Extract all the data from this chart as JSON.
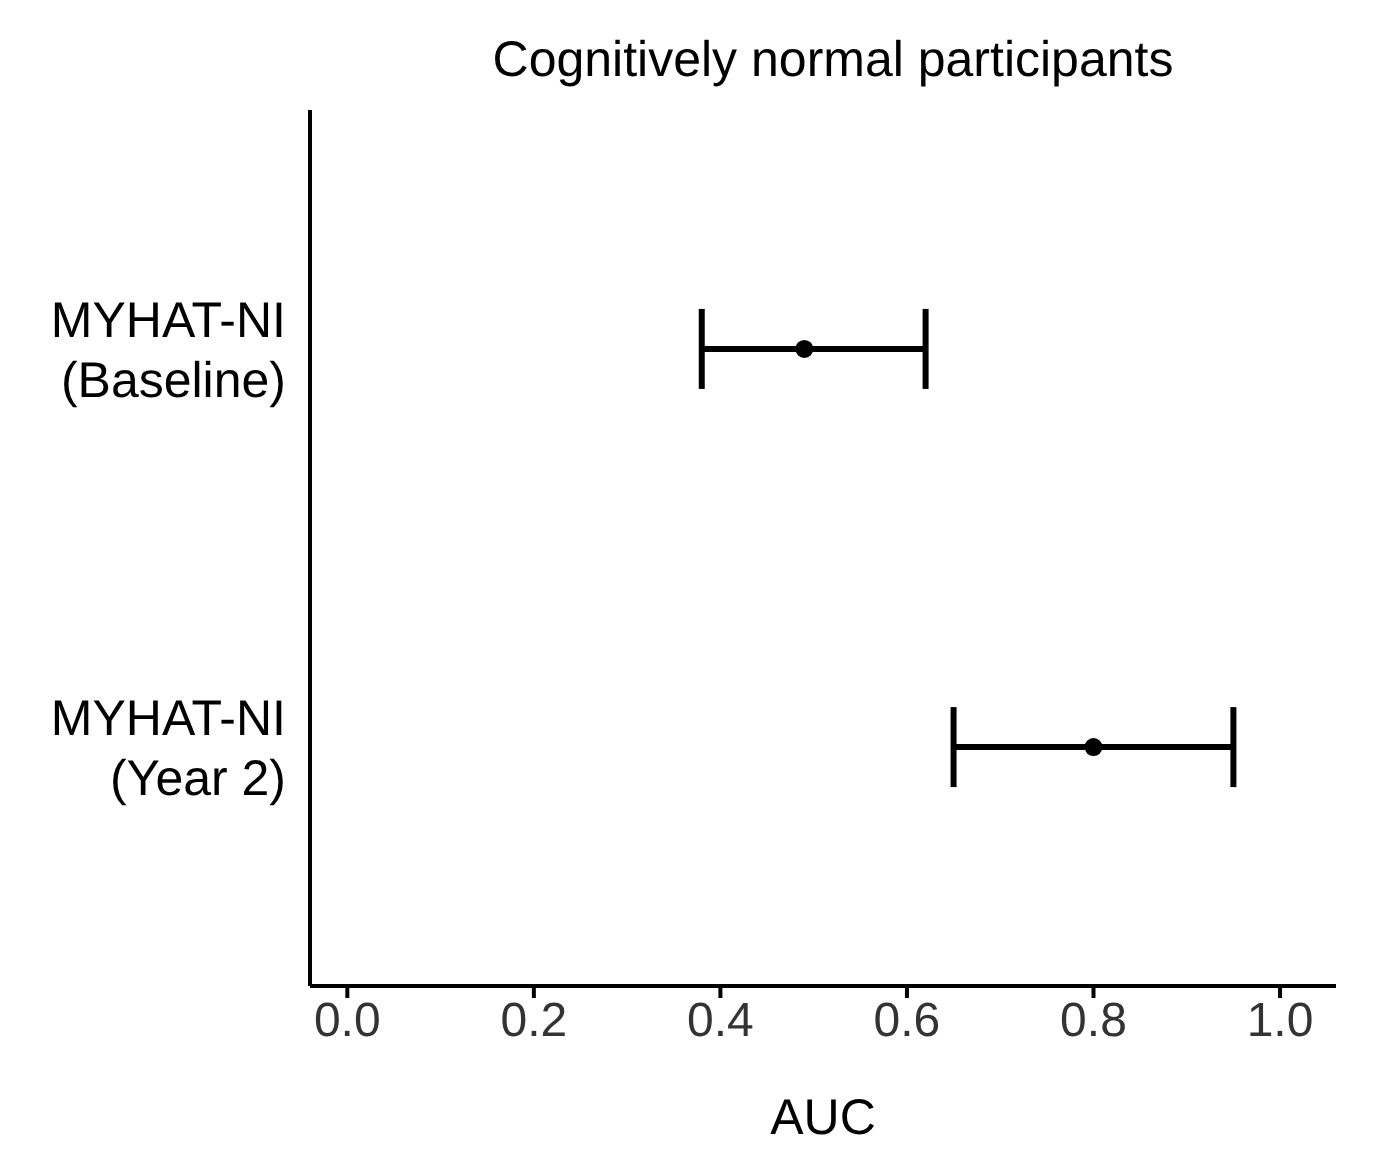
{
  "chart_data": {
    "type": "scatter",
    "orientation": "horizontal",
    "title": "Cognitively normal participants",
    "xlabel": "AUC",
    "categories": [
      "MYHAT-NI (Baseline)",
      "MYHAT-NI (Year 2)"
    ],
    "values": [
      0.49,
      0.8
    ],
    "errors": [
      [
        0.38,
        0.62
      ],
      [
        0.65,
        0.95
      ]
    ],
    "color": "#000000",
    "marker": "circle",
    "xlim": [
      -0.04,
      1.06
    ],
    "xticks": [
      {
        "value": 0,
        "label": "0.0"
      },
      {
        "value": 0.2,
        "label": "0.2"
      },
      {
        "value": 0.4,
        "label": "0.4"
      },
      {
        "value": 0.6,
        "label": "0.6"
      },
      {
        "value": 0.8,
        "label": "0.8"
      },
      {
        "value": 1,
        "label": "1.0"
      }
    ],
    "grid": false,
    "legend": false
  }
}
